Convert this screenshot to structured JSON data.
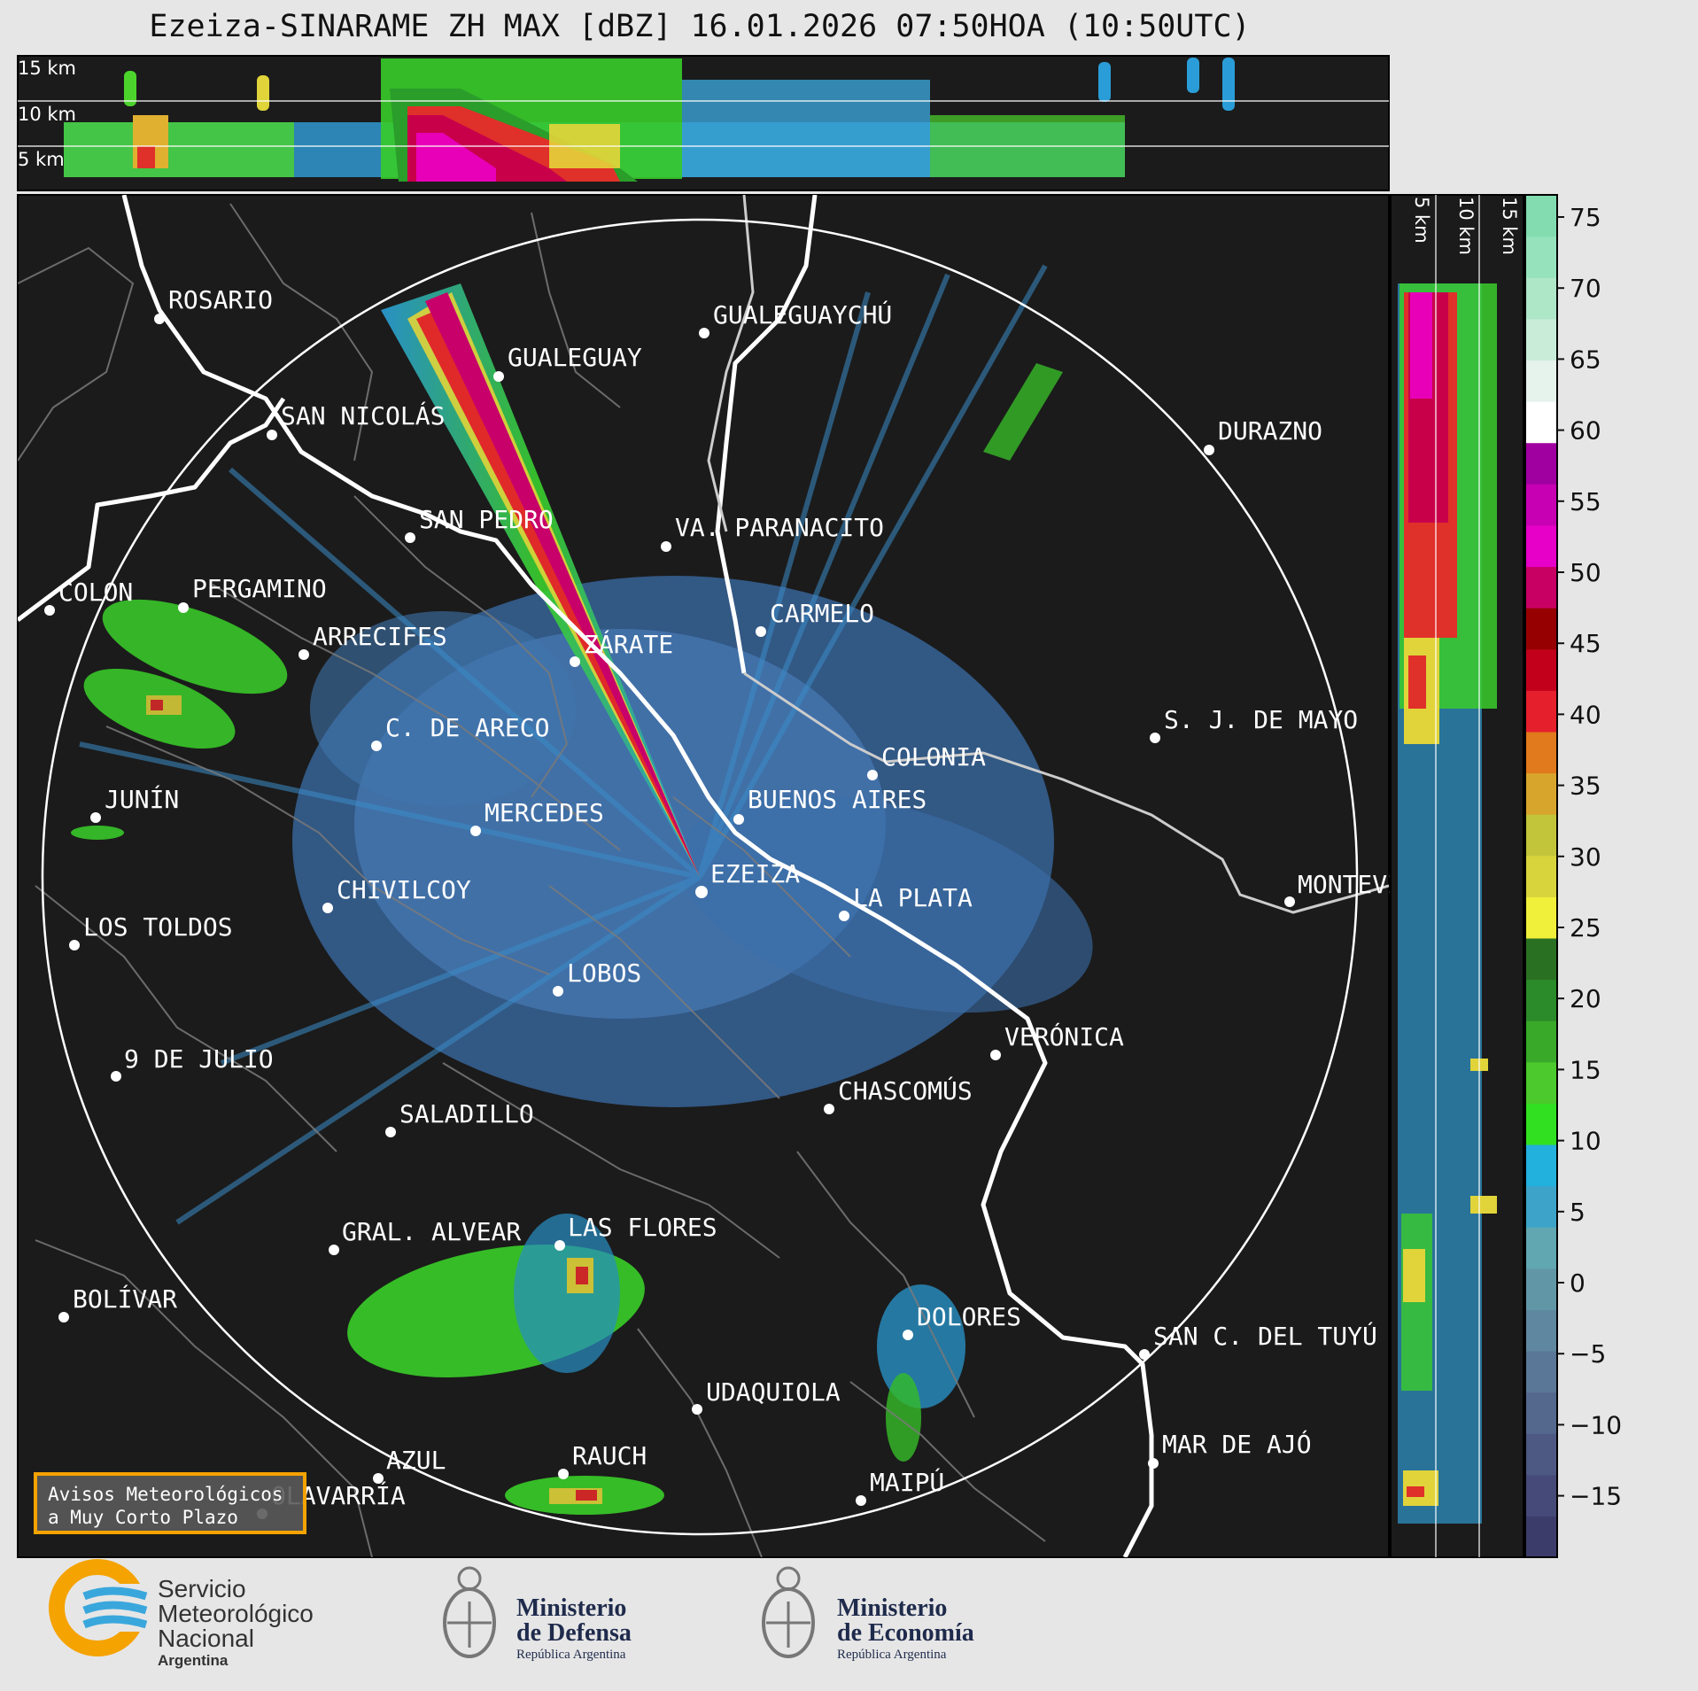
{
  "title": "Ezeiza-SINARAME ZH MAX [dBZ] 16.01.2026 07:50HOA (10:50UTC)",
  "top_profile": {
    "height_labels": [
      "15 km",
      "10 km",
      "5 km"
    ]
  },
  "side_profile": {
    "height_labels": [
      "5 km",
      "10 km",
      "15 km"
    ]
  },
  "colorbar": {
    "ticks": [
      "75",
      "70",
      "65",
      "60",
      "55",
      "50",
      "45",
      "40",
      "35",
      "30",
      "25",
      "20",
      "15",
      "10",
      "5",
      "0",
      "−5",
      "−10",
      "−15"
    ],
    "colors": [
      "#3c3c6b",
      "#454a78",
      "#4d5883",
      "#54688e",
      "#5b7797",
      "#5f87a0",
      "#6196a6",
      "#61a7b1",
      "#3ea3c8",
      "#22b0dc",
      "#32e022",
      "#4cc92c",
      "#39a92a",
      "#2b8a2a",
      "#2a7022",
      "#f0ef3a",
      "#d8d43c",
      "#c2c43a",
      "#d8a52c",
      "#e07a1c",
      "#e61f2c",
      "#c2001c",
      "#960000",
      "#c80064",
      "#e600c8",
      "#c800b4",
      "#a000a0",
      "#ffffff",
      "#e6f2ec",
      "#c8ecd8",
      "#aee6c8",
      "#96e2bc",
      "#82dcb0"
    ]
  },
  "radar": {
    "center_label": "EZEIZA",
    "cities": [
      {
        "name": "ROSARIO"
      },
      {
        "name": "GUALEGUAYCHÚ"
      },
      {
        "name": "GUALEGUAY"
      },
      {
        "name": "SAN NICOLÁS"
      },
      {
        "name": "DURAZNO"
      },
      {
        "name": "SAN PEDRO"
      },
      {
        "name": "VA. PARANACITO"
      },
      {
        "name": "COLON"
      },
      {
        "name": "PERGAMINO"
      },
      {
        "name": "CARMELO"
      },
      {
        "name": "ARRECIFES"
      },
      {
        "name": "ZÁRATE"
      },
      {
        "name": "C. DE ARECO"
      },
      {
        "name": "S. J. DE MAYO"
      },
      {
        "name": "COLONIA"
      },
      {
        "name": "JUNÍN"
      },
      {
        "name": "BUENOS AIRES"
      },
      {
        "name": "MERCEDES"
      },
      {
        "name": "EZEIZA"
      },
      {
        "name": "MONTEVIDEO"
      },
      {
        "name": "CHIVILCOY"
      },
      {
        "name": "LA PLATA"
      },
      {
        "name": "LOS TOLDOS"
      },
      {
        "name": "LOBOS"
      },
      {
        "name": "VERÓNICA"
      },
      {
        "name": "9 DE JULIO"
      },
      {
        "name": "CHASCOMÚS"
      },
      {
        "name": "SALADILLO"
      },
      {
        "name": "GRAL. ALVEAR"
      },
      {
        "name": "LAS FLORES"
      },
      {
        "name": "BOLÍVAR"
      },
      {
        "name": "DOLORES"
      },
      {
        "name": "SAN C. DEL TUYÚ"
      },
      {
        "name": "UDAQUIOLA"
      },
      {
        "name": "MAR DE AJÓ"
      },
      {
        "name": "AZUL"
      },
      {
        "name": "RAUCH"
      },
      {
        "name": "OLAVARRÍA"
      },
      {
        "name": "MAIPÚ"
      }
    ]
  },
  "warning_box": {
    "line1": "Avisos Meteorológicos",
    "line2": "a Muy Corto Plazo"
  },
  "logos": {
    "smn": {
      "line1": "Servicio",
      "line2": "Meteorológico",
      "line3": "Nacional",
      "line4": "Argentina"
    },
    "defensa": {
      "line1": "Ministerio",
      "line2": "de Defensa",
      "line3": "República Argentina"
    },
    "economia": {
      "line1": "Ministerio",
      "line2": "de Economía",
      "line3": "República Argentina"
    }
  }
}
